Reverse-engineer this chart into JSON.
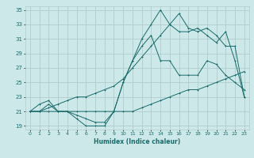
{
  "xlabel": "Humidex (Indice chaleur)",
  "xlim": [
    -0.5,
    23.5
  ],
  "ylim": [
    18.5,
    35.5
  ],
  "yticks": [
    19,
    21,
    23,
    25,
    27,
    29,
    31,
    33,
    35
  ],
  "xticks": [
    0,
    1,
    2,
    3,
    4,
    5,
    6,
    7,
    8,
    9,
    10,
    11,
    12,
    13,
    14,
    15,
    16,
    17,
    18,
    19,
    20,
    21,
    22,
    23
  ],
  "bg_color": "#cce8e8",
  "grid_color": "#b0cccc",
  "line_color": "#1a6b6b",
  "series1_y": [
    21,
    21,
    22,
    21,
    21,
    20,
    19,
    19,
    19,
    21,
    25,
    28,
    30,
    31.5,
    28,
    28,
    26,
    26,
    26,
    28,
    27.5,
    26,
    25,
    24
  ],
  "series2_y": [
    21,
    21,
    21,
    21,
    21,
    21,
    21,
    21,
    21,
    21,
    21,
    21,
    21.5,
    22,
    22.5,
    23,
    23.5,
    24,
    24,
    24.5,
    25,
    25.5,
    26,
    26.5
  ],
  "series3_y": [
    21,
    21,
    21.5,
    22,
    22.5,
    23,
    23,
    23.5,
    24,
    24.5,
    25.5,
    27,
    28.5,
    30,
    31.5,
    33,
    34.5,
    32.5,
    32,
    32.5,
    31.5,
    30,
    30,
    23
  ],
  "series4_y": [
    21,
    22,
    22.5,
    21,
    21,
    20.5,
    20,
    19.5,
    19.5,
    21,
    25,
    28,
    31,
    33,
    35,
    33,
    32,
    32,
    32.5,
    31.5,
    30.5,
    32,
    28,
    23
  ]
}
